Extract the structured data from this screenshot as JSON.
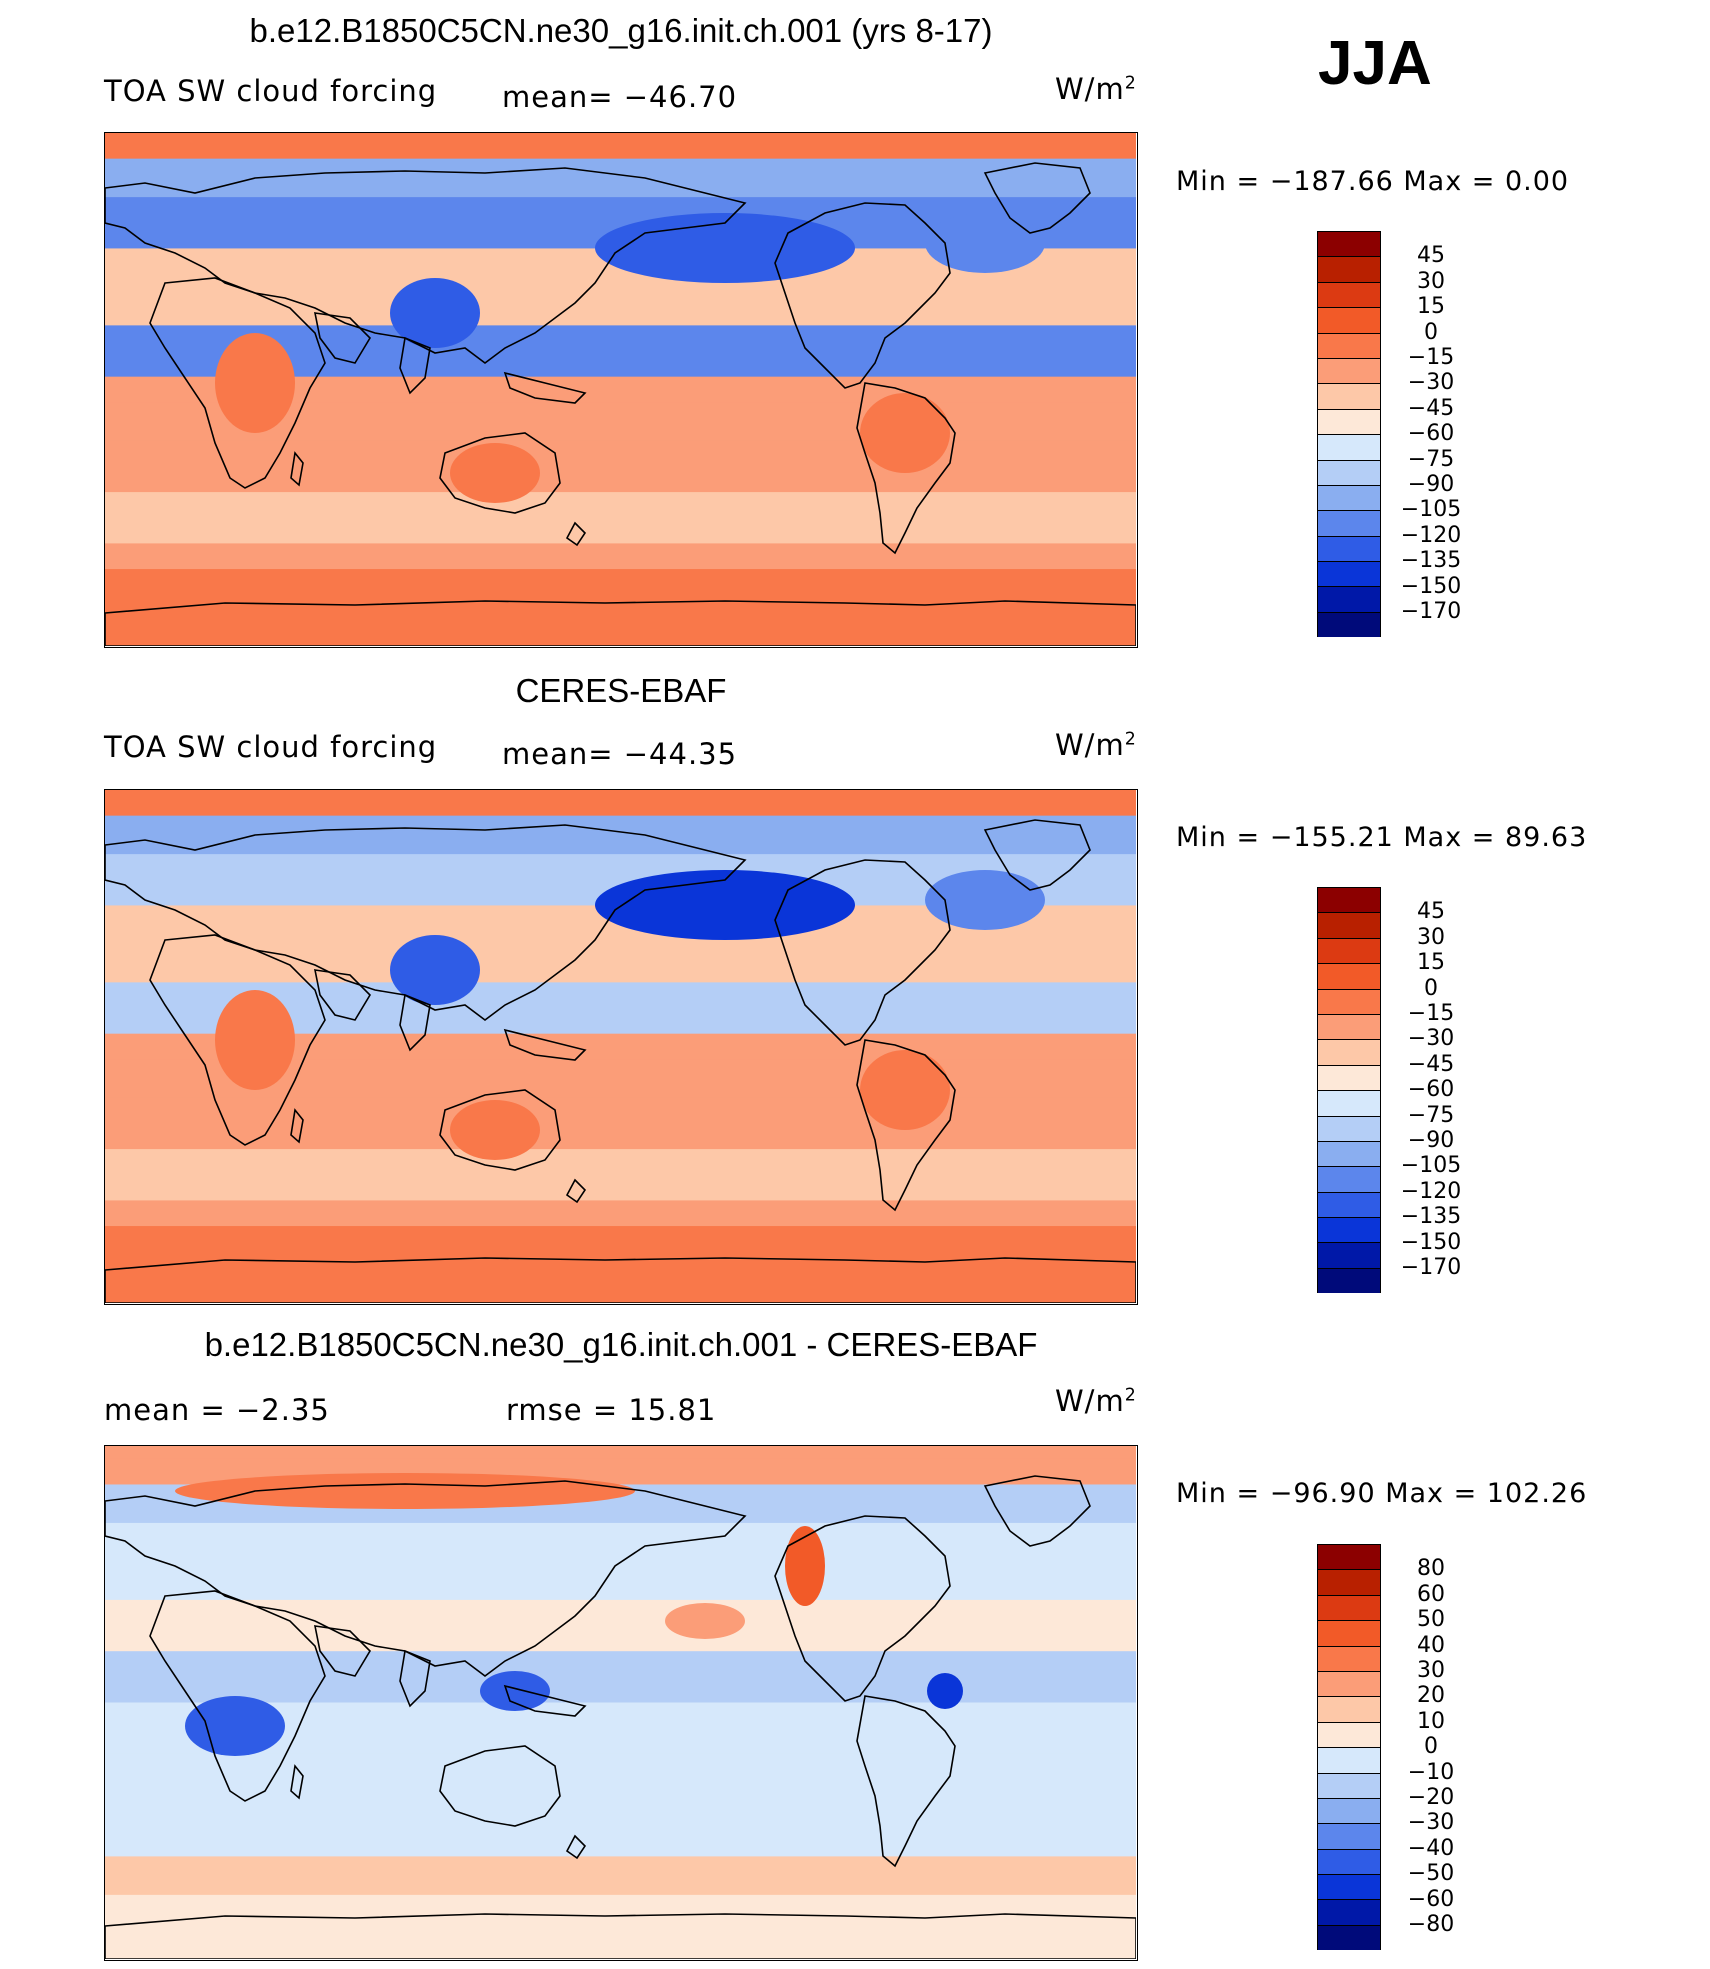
{
  "season": "JJA",
  "panels": [
    {
      "title": "b.e12.B1850C5CN.ne30_g16.init.ch.001 (yrs 8-17)",
      "left_label": "TOA SW cloud forcing",
      "stat1": "mean= −46.70",
      "stat2": "",
      "units": "W/m",
      "units_sup": "2",
      "minmax": "Min  =  −187.66  Max  =     0.00"
    },
    {
      "title": "CERES-EBAF",
      "left_label": "TOA SW cloud forcing",
      "stat1": "mean= −44.35",
      "stat2": "",
      "units": "W/m",
      "units_sup": "2",
      "minmax": "Min  =  −155.21  Max  =   89.63"
    },
    {
      "title": "b.e12.B1850C5CN.ne30_g16.init.ch.001 - CERES-EBAF",
      "left_label": "mean =    −2.35",
      "stat1": "rmse =    15.81",
      "stat2": "",
      "units": "W/m",
      "units_sup": "2",
      "minmax": "Min  =  −96.90  Max  =  102.26"
    }
  ],
  "chart_data": [
    {
      "type": "heatmap",
      "title": "b.e12.B1850C5CN.ne30_g16.init.ch.001 (yrs 8-17)",
      "variable": "TOA SW cloud forcing",
      "units": "W/m2",
      "mean": -46.7,
      "min": -187.66,
      "max": 0.0,
      "colorbar_levels": [
        "45",
        "30",
        "15",
        "0",
        "−15",
        "−30",
        "−45",
        "−60",
        "−75",
        "−90",
        "−105",
        "−120",
        "−135",
        "−150",
        "−170"
      ],
      "colorbar_colors": [
        "#8c0000",
        "#b82000",
        "#dc3a12",
        "#f25a28",
        "#f9784a",
        "#fb9d78",
        "#fdc8a8",
        "#fde8d8",
        "#d6e8fb",
        "#b4cef6",
        "#8aaef0",
        "#5c86ec",
        "#2f5ce6",
        "#0a35d8",
        "#0018a8",
        "#000a7a"
      ]
    },
    {
      "type": "heatmap",
      "title": "CERES-EBAF",
      "variable": "TOA SW cloud forcing",
      "units": "W/m2",
      "mean": -44.35,
      "min": -155.21,
      "max": 89.63,
      "colorbar_levels": [
        "45",
        "30",
        "15",
        "0",
        "−15",
        "−30",
        "−45",
        "−60",
        "−75",
        "−90",
        "−105",
        "−120",
        "−135",
        "−150",
        "−170"
      ],
      "colorbar_colors": [
        "#8c0000",
        "#b82000",
        "#dc3a12",
        "#f25a28",
        "#f9784a",
        "#fb9d78",
        "#fdc8a8",
        "#fde8d8",
        "#d6e8fb",
        "#b4cef6",
        "#8aaef0",
        "#5c86ec",
        "#2f5ce6",
        "#0a35d8",
        "#0018a8",
        "#000a7a"
      ]
    },
    {
      "type": "heatmap",
      "title": "b.e12.B1850C5CN.ne30_g16.init.ch.001 - CERES-EBAF",
      "units": "W/m2",
      "mean": -2.35,
      "rmse": 15.81,
      "min": -96.9,
      "max": 102.26,
      "colorbar_levels": [
        "80",
        "60",
        "50",
        "40",
        "30",
        "20",
        "10",
        "0",
        "−10",
        "−20",
        "−30",
        "−40",
        "−50",
        "−60",
        "−80"
      ],
      "colorbar_colors": [
        "#8c0000",
        "#b82000",
        "#dc3a12",
        "#f25a28",
        "#f9784a",
        "#fb9d78",
        "#fdc8a8",
        "#fde8d8",
        "#d6e8fb",
        "#b4cef6",
        "#8aaef0",
        "#5c86ec",
        "#2f5ce6",
        "#0a35d8",
        "#0018a8",
        "#000a7a"
      ]
    }
  ]
}
